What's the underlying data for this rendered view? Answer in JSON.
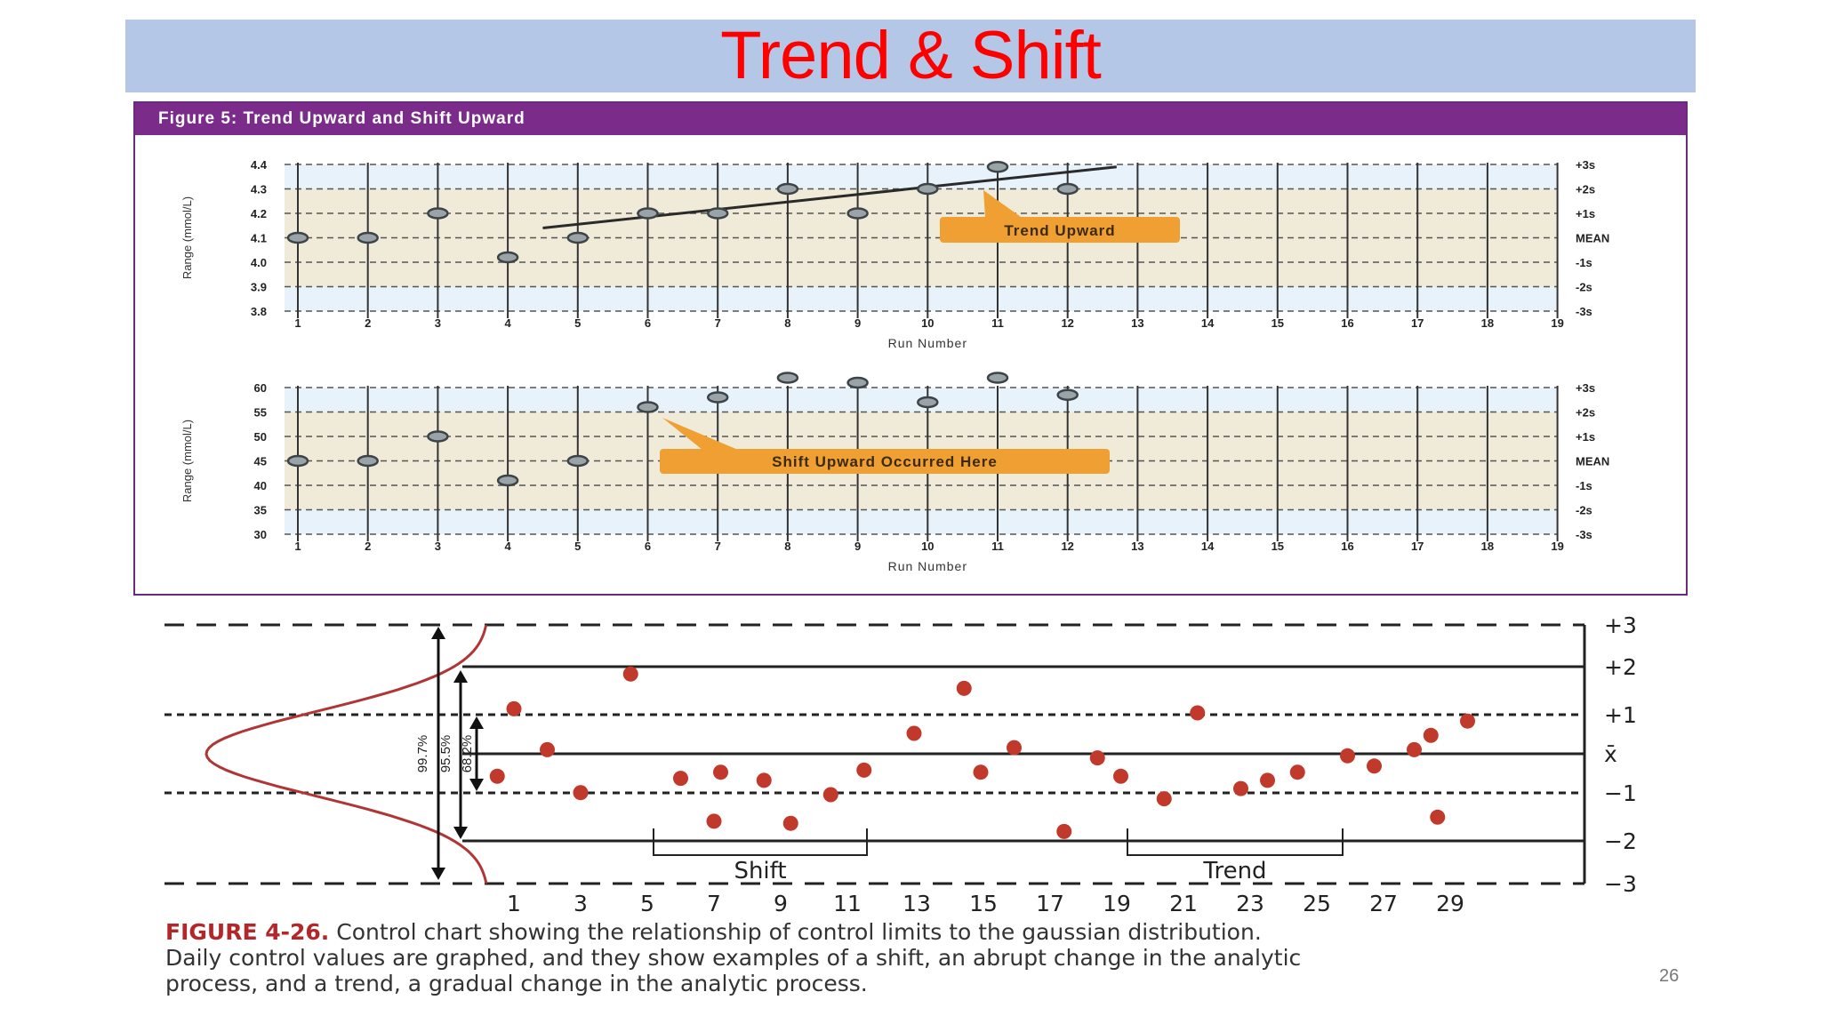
{
  "slide": {
    "title": "Trend & Shift",
    "page_number": "26",
    "colors": {
      "title": "#ff0000",
      "title_bar": "#b4c7e7",
      "figure_header": "#7b2c8a",
      "callout": "#f0a032",
      "point_red": "#c0392b"
    }
  },
  "figure5": {
    "title": "Figure 5: Trend Upward and Shift Upward"
  },
  "caption": {
    "lead": "FIGURE 4-26.",
    "line1": " Control chart showing the relationship of control limits to the gaussian distribution.",
    "line2": "Daily control values are graphed, and they show examples of a shift, an abrupt change in the analytic",
    "line3": "process, and a trend, a gradual change in the analytic process."
  },
  "chart_data": [
    {
      "type": "scatter",
      "xlabel": "Run Number",
      "ylabel": "Range (mmol/L)",
      "x_ticks": [
        "1",
        "2",
        "3",
        "4",
        "5",
        "6",
        "7",
        "8",
        "9",
        "10",
        "11",
        "12",
        "13",
        "14",
        "15",
        "16",
        "17",
        "18",
        "19"
      ],
      "y_ticks": [
        "3.8",
        "3.9",
        "4.0",
        "4.1",
        "4.2",
        "4.3",
        "4.4"
      ],
      "ylim": [
        3.8,
        4.4
      ],
      "right_labels": [
        "+3s",
        "+2s",
        "+1s",
        "MEAN",
        "-1s",
        "-2s",
        "-3s"
      ],
      "points": [
        {
          "x": 1,
          "y": 4.1
        },
        {
          "x": 2,
          "y": 4.1
        },
        {
          "x": 3,
          "y": 4.2
        },
        {
          "x": 4,
          "y": 4.02
        },
        {
          "x": 5,
          "y": 4.1
        },
        {
          "x": 6,
          "y": 4.2
        },
        {
          "x": 7,
          "y": 4.2
        },
        {
          "x": 8,
          "y": 4.3
        },
        {
          "x": 9,
          "y": 4.2
        },
        {
          "x": 10,
          "y": 4.3
        },
        {
          "x": 11,
          "y": 4.39
        },
        {
          "x": 12,
          "y": 4.3
        }
      ],
      "trend_line": {
        "x0": 4.5,
        "y0": 4.14,
        "x1": 12.7,
        "y1": 4.39
      },
      "annotation": "Trend Upward"
    },
    {
      "type": "scatter",
      "xlabel": "Run Number",
      "ylabel": "Range (mmol/L)",
      "x_ticks": [
        "1",
        "2",
        "3",
        "4",
        "5",
        "6",
        "7",
        "8",
        "9",
        "10",
        "11",
        "12",
        "13",
        "14",
        "15",
        "16",
        "17",
        "18",
        "19"
      ],
      "y_ticks": [
        "30",
        "35",
        "40",
        "45",
        "50",
        "55",
        "60"
      ],
      "ylim": [
        30,
        60
      ],
      "right_labels": [
        "+3s",
        "+2s",
        "+1s",
        "MEAN",
        "-1s",
        "-2s",
        "-3s"
      ],
      "points": [
        {
          "x": 1,
          "y": 45
        },
        {
          "x": 2,
          "y": 45
        },
        {
          "x": 3,
          "y": 50
        },
        {
          "x": 4,
          "y": 41
        },
        {
          "x": 5,
          "y": 45
        },
        {
          "x": 6,
          "y": 56
        },
        {
          "x": 7,
          "y": 58
        },
        {
          "x": 8,
          "y": 62
        },
        {
          "x": 9,
          "y": 61
        },
        {
          "x": 10,
          "y": 57
        },
        {
          "x": 11,
          "y": 62
        },
        {
          "x": 12,
          "y": 58.5
        }
      ],
      "annotation": "Shift Upward Occurred Here"
    },
    {
      "type": "scatter",
      "xlim": [
        0,
        30
      ],
      "ylim": [
        -3,
        3
      ],
      "x_ticks": [
        "1",
        "3",
        "5",
        "7",
        "9",
        "11",
        "13",
        "15",
        "17",
        "19",
        "21",
        "23",
        "25",
        "27",
        "29"
      ],
      "y_ticks": [
        "+3",
        "+2",
        "+1",
        "x̄",
        "−1",
        "−2",
        "−3"
      ],
      "distribution_labels": [
        "99.7%",
        "95.5%",
        "68.2%"
      ],
      "brackets": [
        {
          "label": "Shift",
          "from": 5.5,
          "to": 13.5
        },
        {
          "label": "Trend",
          "from": 23.5,
          "to": 29.5
        }
      ],
      "points": [
        {
          "x": 0.5,
          "y": -0.55
        },
        {
          "x": 1,
          "y": 1.1
        },
        {
          "x": 2,
          "y": 0.1
        },
        {
          "x": 3,
          "y": -0.95
        },
        {
          "x": 4.5,
          "y": 1.95
        },
        {
          "x": 6,
          "y": -0.6
        },
        {
          "x": 7,
          "y": -1.65
        },
        {
          "x": 7.2,
          "y": -0.45
        },
        {
          "x": 8.5,
          "y": -0.65
        },
        {
          "x": 9.3,
          "y": -1.7
        },
        {
          "x": 10.5,
          "y": -1.0
        },
        {
          "x": 11.5,
          "y": -0.4
        },
        {
          "x": 13,
          "y": 0.5
        },
        {
          "x": 14.5,
          "y": 1.6
        },
        {
          "x": 15,
          "y": -0.45
        },
        {
          "x": 16,
          "y": 0.15
        },
        {
          "x": 17.5,
          "y": -1.9
        },
        {
          "x": 18.5,
          "y": -0.1
        },
        {
          "x": 19.2,
          "y": -0.55
        },
        {
          "x": 20.5,
          "y": -1.1
        },
        {
          "x": 21.5,
          "y": 1.0
        },
        {
          "x": 22.8,
          "y": -0.85
        },
        {
          "x": 23.6,
          "y": -0.65
        },
        {
          "x": 24.5,
          "y": -0.45
        },
        {
          "x": 26,
          "y": -0.05
        },
        {
          "x": 26.8,
          "y": -0.3
        },
        {
          "x": 28,
          "y": 0.1
        },
        {
          "x": 28.5,
          "y": 0.45
        },
        {
          "x": 29.6,
          "y": 0.8
        },
        {
          "x": 28.7,
          "y": -1.55
        }
      ]
    }
  ]
}
